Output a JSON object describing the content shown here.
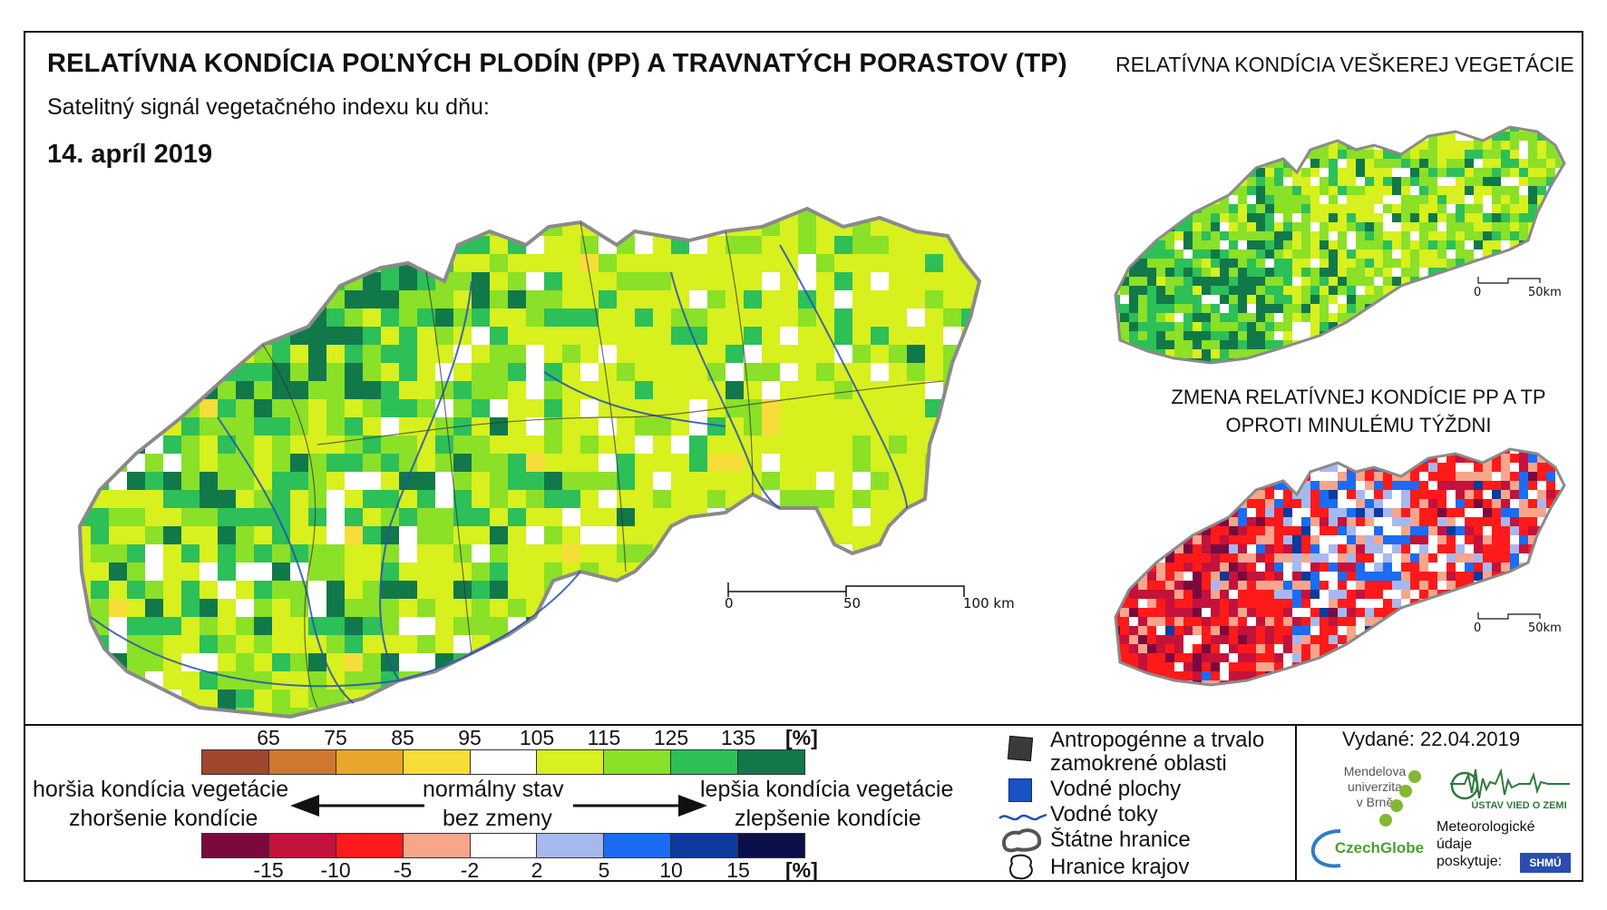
{
  "header": {
    "title": "RELATÍVNA KONDÍCIA POĽNÝCH PLODÍN (PP) A TRAVNATÝCH PORASTOV (TP)",
    "subtitle": "Satelitný signál vegetačného indexu ku dňu:",
    "date": "14. apríl 2019"
  },
  "side_maps": {
    "title_top": "RELATÍVNA KONDÍCIA VEŠKEREJ VEGETÁCIE",
    "title_bottom_line1": "ZMENA RELATÍVNEJ KONDÍCIE PP A TP",
    "title_bottom_line2": "OPROTI MINULÉMU TÝŽDNI"
  },
  "scale_bars": {
    "main": {
      "labels": [
        "0",
        "50",
        "100 km"
      ]
    },
    "small": {
      "labels": [
        "0",
        "50km"
      ]
    }
  },
  "legend": {
    "condition": {
      "ticks": [
        "65",
        "75",
        "85",
        "95",
        "105",
        "115",
        "125",
        "135"
      ],
      "unit": "[%]",
      "colors": [
        "#a0462e",
        "#d0772e",
        "#e8a72a",
        "#f7dd38",
        "#ffffff",
        "#d7f01e",
        "#8be028",
        "#2dbf58",
        "#11784a"
      ]
    },
    "change": {
      "ticks": [
        "-15",
        "-10",
        "-5",
        "-2",
        "2",
        "5",
        "10",
        "15"
      ],
      "unit": "[%]",
      "colors": [
        "#7a0a3e",
        "#c3123c",
        "#ff1a1a",
        "#f8a58c",
        "#ffffff",
        "#a6b8f0",
        "#1b6cf2",
        "#0d3a9c",
        "#0b0f4a"
      ]
    },
    "worse_line1": "horšia kondícia vegetácie",
    "worse_line2": "zhoršenie kondície",
    "normal_line1": "normálny stav",
    "normal_line2": "bez zmeny",
    "better_line1": "lepšia kondícia vegetácie",
    "better_line2": "zlepšenie kondície",
    "items": {
      "anthropogenic_line1": "Antropogénne a trvalo",
      "anthropogenic_line2": "zamokrené oblasti",
      "water_areas": "Vodné plochy",
      "water_courses": "Vodné toky",
      "state_borders": "Štátne hranice",
      "region_borders": "Hranice krajov"
    },
    "symbol_colors": {
      "anthropogenic": "#3a3a3a",
      "water": "#1753c4",
      "river": "#1e4fb5",
      "border": "#555555"
    }
  },
  "footer": {
    "issued": "Vydané: 22.04.2019",
    "mendel_line1": "Mendelova",
    "mendel_line2": "univerzita",
    "mendel_line3": "v Brně",
    "czechglobe": "CzechGlobe",
    "uvz": "ÚSTAV VIED O ZEMI",
    "meteo_line1": "Meteorologické",
    "meteo_line2": "údaje",
    "meteo_line3": "poskytuje:",
    "shmu": "SHMÚ"
  }
}
